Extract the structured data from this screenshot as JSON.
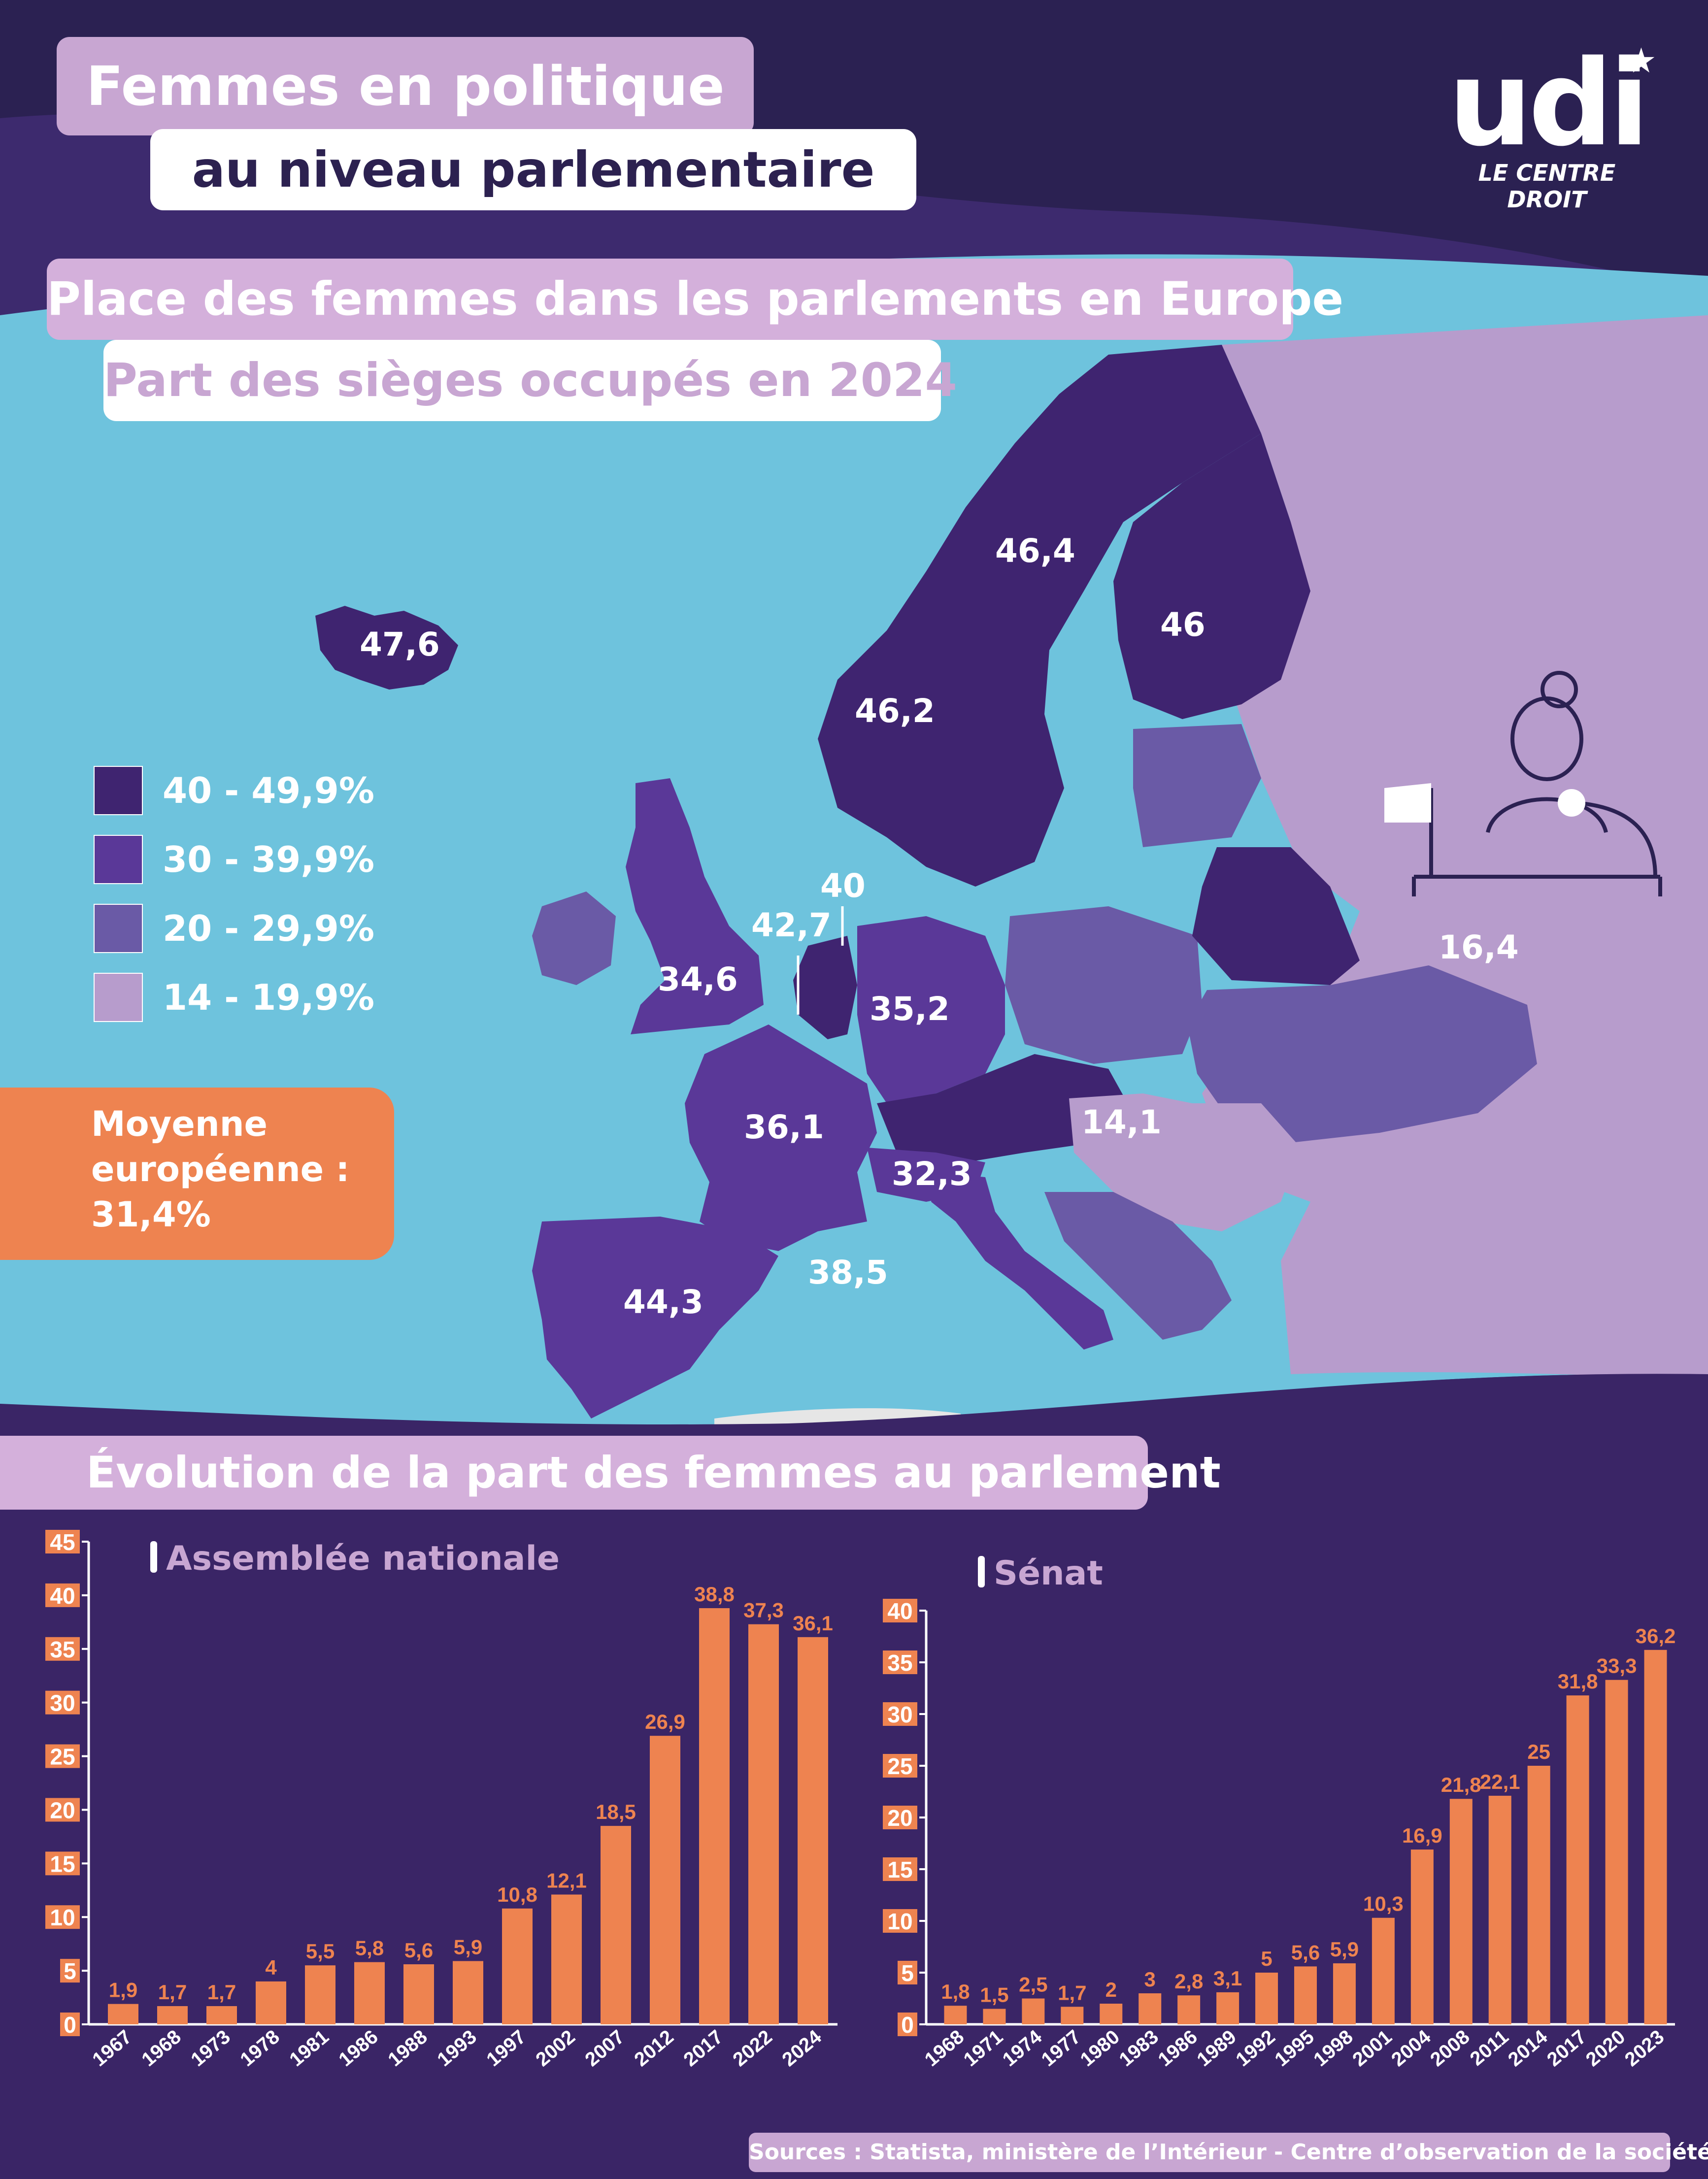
{
  "header": {
    "title_line1": "Femmes en politique",
    "title_line2": "au niveau parlementaire",
    "logo_text": "udi",
    "logo_tagline": "LE CENTRE DROIT"
  },
  "map_section": {
    "title": "Place des femmes dans les parlements en Europe",
    "subtitle": "Part des sièges occupés en 2024",
    "legend": [
      {
        "label": "40 - 49,9%",
        "color": "#3f2470"
      },
      {
        "label": "30 - 39,9%",
        "color": "#5a3898"
      },
      {
        "label": "20 - 29,9%",
        "color": "#6a5aa6"
      },
      {
        "label": "14 - 19,9%",
        "color": "#b79ccc"
      }
    ],
    "values": {
      "iceland": "47,6",
      "sweden": "46,4",
      "finland": "46",
      "norway": "46,2",
      "netherlands": "40",
      "belgium": "42,7",
      "uk": "34,6",
      "germany": "35,2",
      "france": "36,1",
      "hungary": "14,1",
      "switzerland": "32,3",
      "italy": "38,5",
      "spain": "44,3",
      "russia": "16,4"
    },
    "average_label_line1": "Moyenne",
    "average_label_line2": "européenne :",
    "average_value": "31,4%"
  },
  "evolution_section": {
    "title": "Évolution de la part des femmes au parlement"
  },
  "colors": {
    "bar": "#ee8350",
    "background": "#3a2566",
    "sea": "#6ec3dd"
  },
  "chart_data": [
    {
      "type": "bar",
      "title": "Assemblée nationale",
      "categories": [
        "1967",
        "1968",
        "1973",
        "1978",
        "1981",
        "1986",
        "1988",
        "1993",
        "1997",
        "2002",
        "2007",
        "2012",
        "2017",
        "2022",
        "2024"
      ],
      "values": [
        1.9,
        1.7,
        1.7,
        4,
        5.5,
        5.8,
        5.6,
        5.9,
        10.8,
        12.1,
        18.5,
        26.9,
        38.8,
        37.3,
        36.1
      ],
      "value_labels": [
        "1,9",
        "1,7",
        "1,7",
        "4",
        "5,5",
        "5,8",
        "5,6",
        "5,9",
        "10,8",
        "12,1",
        "18,5",
        "26,9",
        "38,8",
        "37,3",
        "36,1"
      ],
      "ylim": [
        0,
        45
      ],
      "yticks": [
        0,
        5,
        10,
        15,
        20,
        25,
        30,
        35,
        40,
        45
      ]
    },
    {
      "type": "bar",
      "title": "Sénat",
      "categories": [
        "1968",
        "1971",
        "1974",
        "1977",
        "1980",
        "1983",
        "1986",
        "1989",
        "1992",
        "1995",
        "1998",
        "2001",
        "2004",
        "2008",
        "2011",
        "2014",
        "2017",
        "2020",
        "2023"
      ],
      "values": [
        1.8,
        1.5,
        2.5,
        1.7,
        2,
        3,
        2.8,
        3.1,
        5,
        5.6,
        5.9,
        10.3,
        16.9,
        21.8,
        22.1,
        25,
        31.8,
        33.3,
        36.2
      ],
      "value_labels": [
        "1,8",
        "1,5",
        "2,5",
        "1,7",
        "2",
        "3",
        "2,8",
        "3,1",
        "5",
        "5,6",
        "5,9",
        "10,3",
        "16,9",
        "21,8",
        "22,1",
        "25",
        "31,8",
        "33,3",
        "36,2"
      ],
      "ylim": [
        0,
        40
      ],
      "yticks": [
        0,
        5,
        10,
        15,
        20,
        25,
        30,
        35,
        40
      ]
    }
  ],
  "sources": "Sources : Statista, ministère de l’Intérieur - Centre d’observation de la société"
}
